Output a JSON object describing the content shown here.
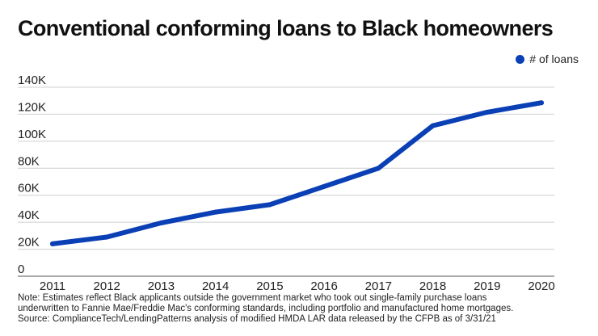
{
  "chart_data": {
    "type": "line",
    "title": "Conventional conforming loans to Black homeowners",
    "x": [
      "2011",
      "2012",
      "2013",
      "2014",
      "2015",
      "2016",
      "2017",
      "2018",
      "2019",
      "2020"
    ],
    "series": [
      {
        "name": "# of loans",
        "color": "#0a3fb5",
        "values": [
          24000,
          29000,
          39500,
          47500,
          53000,
          66500,
          80000,
          111500,
          121500,
          128500
        ]
      }
    ],
    "yticks": [
      "0",
      "20K",
      "40K",
      "60K",
      "80K",
      "100K",
      "120K",
      "140K"
    ],
    "ytick_values": [
      0,
      20000,
      40000,
      60000,
      80000,
      100000,
      120000,
      140000
    ],
    "ylim": [
      0,
      140000
    ],
    "grid": true,
    "legend": "top-right"
  },
  "notes": {
    "line1": "Note: Estimates reflect Black applicants outside the government market who took out single-family purchase loans",
    "line2": "underwritten to Fannie Mae/Freddie Mac's conforming standards, including portfolio and manufactured home mortgages.",
    "line3": "Source: ComplianceTech/LendingPatterns analysis of modified HMDA LAR data released by the CFPB as of 3/31/21"
  }
}
